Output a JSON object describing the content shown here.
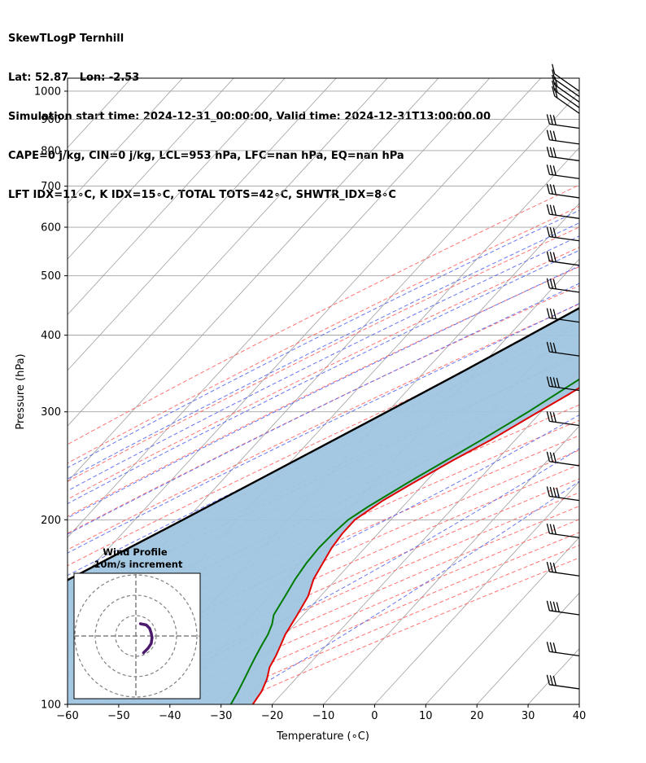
{
  "header": {
    "line1": "SkewTLogP Ternhill",
    "line2": "Lat: 52.87   Lon: -2.53",
    "line3": "Simulation start time: 2024-12-31_00:00:00, Valid time: 2024-12-31T13:00:00.00",
    "line4": "CAPE=0 j/kg, CIN=0 j/kg, LCL=953 hPa, LFC=nan hPa, EQ=nan hPa",
    "line5": "LFT IDX=11∘C, K IDX=15∘C, TOTAL TOTS=42∘C, SHWTR_IDX=8∘C"
  },
  "inset": {
    "title": "Wind Profile",
    "subtitle": "10m/s increment"
  },
  "chart_data": {
    "type": "line",
    "xlabel": "Temperature (∘C)",
    "ylabel": "Pressure (hPa)",
    "xlim": [
      -60,
      40
    ],
    "ylim": [
      1050,
      100
    ],
    "y_scale": "log",
    "skew": true,
    "x_ticks": [
      "−60",
      "−50",
      "−40",
      "−30",
      "−20",
      "−10",
      "0",
      "10",
      "20",
      "30",
      "40"
    ],
    "y_ticks": [
      "100",
      "200",
      "300",
      "400",
      "500",
      "600",
      "700",
      "800",
      "900",
      "1000"
    ],
    "colors": {
      "temperature": "#e00000",
      "dewpoint": "#007a00",
      "parcel": "#000000",
      "shading": "#9fc5e0",
      "dry_adiabat": "#ff5a5a",
      "moist_adiabat": "#4f5ff0",
      "mixing_ratio": "#8c3fbf",
      "isotherm": "#a0a0a0",
      "hodograph": "#4b1a6e"
    },
    "series": [
      {
        "key": "temperature",
        "points": [
          [
            1000,
            10.3
          ],
          [
            960,
            8.8
          ],
          [
            920,
            8.7
          ],
          [
            880,
            9.6
          ],
          [
            850,
            9.6
          ],
          [
            800,
            9.7
          ],
          [
            770,
            9.2
          ],
          [
            740,
            7.7
          ],
          [
            700,
            6.9
          ],
          [
            650,
            5.3
          ],
          [
            600,
            3.2
          ],
          [
            550,
            1.0
          ],
          [
            500,
            -2.0
          ],
          [
            450,
            -5.4
          ],
          [
            400,
            -9.3
          ],
          [
            370,
            -12.2
          ],
          [
            350,
            -14.5
          ],
          [
            320,
            -17.8
          ],
          [
            300,
            -20.5
          ],
          [
            270,
            -24.8
          ],
          [
            250,
            -28.5
          ],
          [
            230,
            -32.2
          ],
          [
            215,
            -35.0
          ],
          [
            200,
            -37.0
          ],
          [
            190,
            -37.0
          ],
          [
            180,
            -36.5
          ],
          [
            170,
            -35.5
          ],
          [
            160,
            -34.4
          ],
          [
            150,
            -32.4
          ],
          [
            140,
            -31.2
          ],
          [
            130,
            -30.0
          ],
          [
            125,
            -29.0
          ],
          [
            120,
            -28.0
          ],
          [
            115,
            -27.2
          ],
          [
            110,
            -25.6
          ],
          [
            105,
            -24.4
          ],
          [
            100,
            -23.8
          ]
        ]
      },
      {
        "key": "dewpoint",
        "points": [
          [
            1000,
            7.7
          ],
          [
            960,
            7.7
          ],
          [
            920,
            6.9
          ],
          [
            880,
            5.7
          ],
          [
            850,
            4.7
          ],
          [
            800,
            1.7
          ],
          [
            770,
            -1.0
          ],
          [
            740,
            -1.3
          ],
          [
            700,
            -0.3
          ],
          [
            650,
            2.0
          ],
          [
            600,
            2.0
          ],
          [
            550,
            -0.2
          ],
          [
            500,
            -4.0
          ],
          [
            450,
            -8.2
          ],
          [
            400,
            -13.0
          ],
          [
            380,
            -14.6
          ],
          [
            360,
            -16.4
          ],
          [
            340,
            -18.3
          ],
          [
            300,
            -22.5
          ],
          [
            270,
            -26.6
          ],
          [
            250,
            -29.8
          ],
          [
            230,
            -33.3
          ],
          [
            210,
            -36.8
          ],
          [
            200,
            -38.3
          ],
          [
            190,
            -38.8
          ],
          [
            180,
            -39.0
          ],
          [
            170,
            -38.7
          ],
          [
            160,
            -38.0
          ],
          [
            150,
            -36.9
          ],
          [
            140,
            -35.8
          ],
          [
            135,
            -34.4
          ],
          [
            130,
            -33.4
          ],
          [
            125,
            -32.7
          ],
          [
            120,
            -31.9
          ],
          [
            115,
            -31.0
          ],
          [
            110,
            -30.0
          ],
          [
            105,
            -29.0
          ],
          [
            100,
            -28.1
          ]
        ]
      },
      {
        "key": "parcel",
        "points": [
          [
            1000,
            10.3
          ],
          [
            953,
            7.2
          ],
          [
            900,
            4.0
          ],
          [
            850,
            0.9
          ],
          [
            800,
            -2.3
          ],
          [
            750,
            -5.6
          ],
          [
            700,
            -9.1
          ],
          [
            650,
            -12.8
          ],
          [
            600,
            -16.7
          ],
          [
            550,
            -20.9
          ],
          [
            500,
            -25.4
          ],
          [
            450,
            -30.4
          ],
          [
            400,
            -36.0
          ],
          [
            350,
            -42.4
          ],
          [
            300,
            -50.1
          ],
          [
            250,
            -59.3
          ],
          [
            200,
            -70.6
          ],
          [
            150,
            -85.5
          ],
          [
            100,
            -106.5
          ]
        ]
      }
    ],
    "wind_barbs": [
      {
        "p": 1000,
        "spd": 6
      },
      {
        "p": 980,
        "spd": 10
      },
      {
        "p": 960,
        "spd": 15
      },
      {
        "p": 940,
        "spd": 20
      },
      {
        "p": 920,
        "spd": 22
      },
      {
        "p": 870,
        "spd": 25
      },
      {
        "p": 820,
        "spd": 25
      },
      {
        "p": 770,
        "spd": 30
      },
      {
        "p": 720,
        "spd": 30
      },
      {
        "p": 670,
        "spd": 30
      },
      {
        "p": 620,
        "spd": 30
      },
      {
        "p": 570,
        "spd": 30
      },
      {
        "p": 520,
        "spd": 30
      },
      {
        "p": 470,
        "spd": 30
      },
      {
        "p": 420,
        "spd": 30
      },
      {
        "p": 370,
        "spd": 30
      },
      {
        "p": 325,
        "spd": 35
      },
      {
        "p": 285,
        "spd": 30
      },
      {
        "p": 245,
        "spd": 30
      },
      {
        "p": 215,
        "spd": 35
      },
      {
        "p": 187,
        "spd": 25
      },
      {
        "p": 162,
        "spd": 25
      },
      {
        "p": 140,
        "spd": 35
      },
      {
        "p": 120,
        "spd": 30
      },
      {
        "p": 106,
        "spd": 30
      }
    ],
    "hodograph": {
      "ring_step_ms": 10,
      "rings": 3,
      "points": [
        [
          4.0,
          1.5
        ],
        [
          3.6,
          3.4
        ],
        [
          2.5,
          4.5
        ],
        [
          1.0,
          5.0
        ],
        [
          -0.5,
          5.3
        ],
        [
          -2.5,
          5.0
        ],
        [
          -4.0,
          4.0
        ],
        [
          -5.0,
          3.0
        ],
        [
          -5.5,
          2.5
        ]
      ]
    }
  }
}
